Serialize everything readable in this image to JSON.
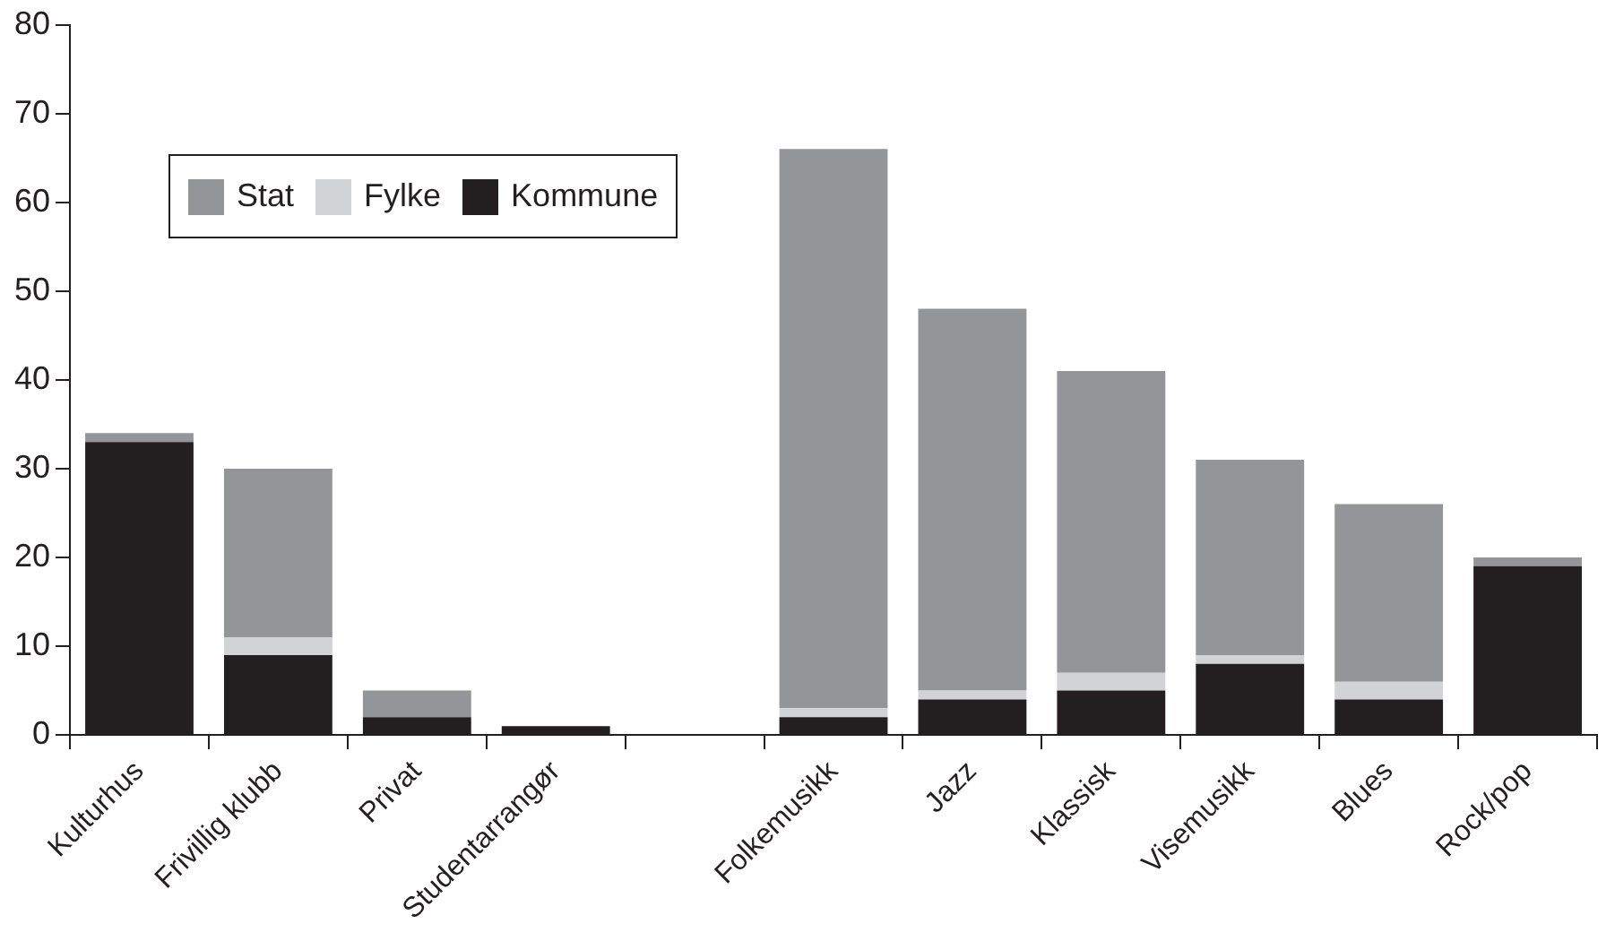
{
  "chart_data": {
    "type": "bar",
    "stacked": true,
    "categories": [
      "Kulturhus",
      "Frivillig klubb",
      "Privat",
      "Studentarrangør",
      null,
      "Folkemusikk",
      "Jazz",
      "Klassisk",
      "Visemusikk",
      "Blues",
      "Rock/pop"
    ],
    "series": [
      {
        "name": "Kommune",
        "color": "#231f20",
        "values": [
          33,
          9,
          2,
          1,
          null,
          2,
          4,
          5,
          8,
          4,
          19
        ]
      },
      {
        "name": "Fylke",
        "color": "#d1d3d4",
        "values": [
          0,
          2,
          0,
          0,
          null,
          1,
          1,
          2,
          1,
          2,
          0
        ]
      },
      {
        "name": "Stat",
        "color": "#939598",
        "values": [
          1,
          19,
          3,
          0,
          null,
          63,
          43,
          34,
          22,
          20,
          1
        ]
      }
    ],
    "ylim": [
      0,
      80
    ],
    "yticks": [
      0,
      10,
      20,
      30,
      40,
      50,
      60,
      70,
      80
    ],
    "grid": false,
    "legend": "top left"
  }
}
